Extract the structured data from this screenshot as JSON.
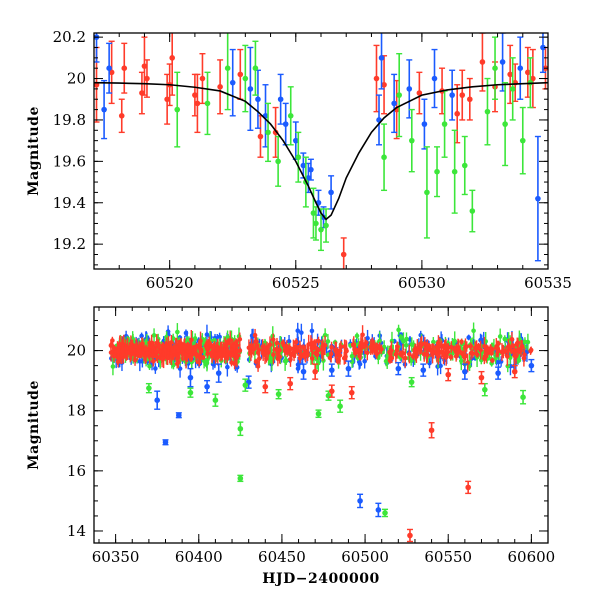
{
  "chart_data": [
    {
      "type": "scatter",
      "title": "",
      "xlabel": "",
      "ylabel": "Magnitude",
      "xlim": [
        60517,
        60535
      ],
      "ylim": [
        20.22,
        19.08
      ],
      "y_inverted": true,
      "x_ticks_labeled": [
        "60520",
        "60525",
        "60530",
        "60535"
      ],
      "y_ticks_labeled": [
        "19.2",
        "19.4",
        "19.6",
        "19.8",
        "20",
        "20.2"
      ],
      "grid": false,
      "legend": "none",
      "series": [
        {
          "color": "#ff3b2a",
          "errorbars": true,
          "points": [
            [
              60517.1,
              19.97,
              0.18
            ],
            [
              60517.7,
              20.03,
              0.15
            ],
            [
              60518.1,
              19.82,
              0.08
            ],
            [
              60518.2,
              20.05,
              0.12
            ],
            [
              60518.9,
              19.93,
              0.1
            ],
            [
              60519.0,
              20.06,
              0.14
            ],
            [
              60519.1,
              20.0,
              0.09
            ],
            [
              60519.9,
              19.9,
              0.12
            ],
            [
              60520.0,
              19.97,
              0.1
            ],
            [
              60520.1,
              20.1,
              0.18
            ],
            [
              60521.0,
              19.92,
              0.1
            ],
            [
              60521.1,
              19.88,
              0.14
            ],
            [
              60521.3,
              20.0,
              0.12
            ],
            [
              60522.0,
              19.96,
              0.13
            ],
            [
              60522.8,
              20.02,
              0.12
            ],
            [
              60523.6,
              19.72,
              0.1
            ],
            [
              60524.2,
              19.74,
              0.12
            ],
            [
              60526.9,
              19.15,
              0.08
            ],
            [
              60528.2,
              20.0,
              0.16
            ],
            [
              60528.5,
              19.97,
              0.14
            ],
            [
              60529.0,
              19.85,
              0.14
            ],
            [
              60529.9,
              19.93,
              0.1
            ],
            [
              60530.8,
              19.94,
              0.11
            ],
            [
              60531.4,
              19.83,
              0.14
            ],
            [
              60531.6,
              19.92,
              0.12
            ],
            [
              60531.9,
              19.9,
              0.1
            ],
            [
              60532.4,
              20.08,
              0.14
            ],
            [
              60532.9,
              19.96,
              0.12
            ],
            [
              60533.5,
              20.02,
              0.14
            ],
            [
              60533.7,
              19.98,
              0.09
            ],
            [
              60534.2,
              20.03,
              0.12
            ],
            [
              60534.4,
              20.0,
              0.14
            ],
            [
              60534.9,
              20.05,
              0.1
            ]
          ]
        },
        {
          "color": "#1b5bff",
          "errorbars": true,
          "points": [
            [
              60517.1,
              20.2,
              0.12
            ],
            [
              60517.4,
              19.85,
              0.14
            ],
            [
              60517.6,
              20.05,
              0.12
            ],
            [
              60522.5,
              19.98,
              0.16
            ],
            [
              60523.2,
              19.95,
              0.2
            ],
            [
              60523.5,
              19.9,
              0.14
            ],
            [
              60523.8,
              19.82,
              0.15
            ],
            [
              60524.4,
              19.9,
              0.12
            ],
            [
              60524.6,
              19.78,
              0.1
            ],
            [
              60525.0,
              19.7,
              0.09
            ],
            [
              60525.3,
              19.58,
              0.06
            ],
            [
              60525.5,
              19.52,
              0.07
            ],
            [
              60525.6,
              19.56,
              0.05
            ],
            [
              60525.9,
              19.4,
              0.06
            ],
            [
              60526.1,
              19.33,
              0.05
            ],
            [
              60526.4,
              19.45,
              0.08
            ],
            [
              60528.3,
              19.8,
              0.12
            ],
            [
              60528.4,
              20.1,
              0.15
            ],
            [
              60528.9,
              19.88,
              0.14
            ],
            [
              60529.5,
              19.95,
              0.14
            ],
            [
              60530.1,
              19.78,
              0.12
            ],
            [
              60530.5,
              20.0,
              0.14
            ],
            [
              60531.2,
              19.92,
              0.12
            ],
            [
              60533.2,
              20.08,
              0.14
            ],
            [
              60533.9,
              20.05,
              0.15
            ],
            [
              60534.6,
              19.42,
              0.3
            ],
            [
              60534.8,
              20.15,
              0.12
            ]
          ]
        },
        {
          "color": "#3ce63a",
          "errorbars": true,
          "points": [
            [
              60520.3,
              19.85,
              0.18
            ],
            [
              60521.5,
              19.88,
              0.15
            ],
            [
              60522.3,
              20.05,
              0.2
            ],
            [
              60523.0,
              20.0,
              0.16
            ],
            [
              60523.4,
              20.05,
              0.13
            ],
            [
              60523.9,
              19.74,
              0.14
            ],
            [
              60524.3,
              19.6,
              0.12
            ],
            [
              60524.8,
              19.82,
              0.14
            ],
            [
              60525.1,
              19.62,
              0.12
            ],
            [
              60525.4,
              19.5,
              0.12
            ],
            [
              60525.7,
              19.35,
              0.12
            ],
            [
              60525.8,
              19.3,
              0.08
            ],
            [
              60526.0,
              19.27,
              0.1
            ],
            [
              60526.2,
              19.29,
              0.08
            ],
            [
              60528.5,
              19.62,
              0.16
            ],
            [
              60529.1,
              19.92,
              0.2
            ],
            [
              60529.6,
              19.7,
              0.15
            ],
            [
              60530.2,
              19.45,
              0.22
            ],
            [
              60530.6,
              19.55,
              0.12
            ],
            [
              60530.9,
              19.78,
              0.16
            ],
            [
              60531.3,
              19.55,
              0.2
            ],
            [
              60531.7,
              19.58,
              0.14
            ],
            [
              60532.0,
              19.36,
              0.1
            ],
            [
              60532.6,
              19.84,
              0.16
            ],
            [
              60532.9,
              20.05,
              0.15
            ],
            [
              60533.3,
              19.78,
              0.2
            ],
            [
              60533.6,
              19.95,
              0.15
            ],
            [
              60534.0,
              19.7,
              0.16
            ],
            [
              60534.3,
              19.98,
              0.12
            ]
          ]
        },
        {
          "type": "line",
          "color": "#000000",
          "errorbars": false,
          "points": [
            [
              60517.0,
              19.98
            ],
            [
              60518.0,
              19.978
            ],
            [
              60519.0,
              19.975
            ],
            [
              60520.0,
              19.97
            ],
            [
              60521.0,
              19.958
            ],
            [
              60522.0,
              19.94
            ],
            [
              60523.0,
              19.89
            ],
            [
              60523.5,
              19.84
            ],
            [
              60524.0,
              19.78
            ],
            [
              60524.5,
              19.7
            ],
            [
              60525.0,
              19.6
            ],
            [
              60525.5,
              19.48
            ],
            [
              60525.8,
              19.4
            ],
            [
              60526.0,
              19.35
            ],
            [
              60526.2,
              19.32
            ],
            [
              60526.4,
              19.34
            ],
            [
              60526.7,
              19.42
            ],
            [
              60527.0,
              19.52
            ],
            [
              60527.5,
              19.64
            ],
            [
              60528.0,
              19.74
            ],
            [
              60528.5,
              19.81
            ],
            [
              60529.0,
              19.86
            ],
            [
              60530.0,
              19.92
            ],
            [
              60531.0,
              19.945
            ],
            [
              60532.0,
              19.96
            ],
            [
              60533.0,
              19.97
            ],
            [
              60534.0,
              19.975
            ],
            [
              60535.0,
              19.98
            ]
          ]
        }
      ]
    },
    {
      "type": "scatter",
      "title": "",
      "xlabel": "HJD−2400000",
      "ylabel": "Magnitude",
      "xlim": [
        60337,
        60610
      ],
      "ylim": [
        21.45,
        13.6
      ],
      "y_inverted": true,
      "x_ticks_labeled": [
        "60350",
        "60400",
        "60450",
        "60500",
        "60550",
        "60600"
      ],
      "y_ticks_labeled": [
        "14",
        "16",
        "18",
        "20"
      ],
      "grid": false,
      "legend": "none",
      "series": [
        {
          "color": "#1b5bff",
          "errorbars": true,
          "points": [
            [
              60375,
              18.35,
              0.3
            ],
            [
              60380,
              16.95,
              0.08
            ],
            [
              60388,
              17.85,
              0.08
            ],
            [
              60395,
              19.1,
              0.3
            ],
            [
              60405,
              18.8,
              0.2
            ],
            [
              60412,
              19.25,
              0.3
            ],
            [
              60430,
              18.95,
              0.2
            ],
            [
              60463,
              19.3,
              0.25
            ],
            [
              60480,
              19.35,
              0.2
            ],
            [
              60490,
              19.4,
              0.25
            ],
            [
              60497,
              15.0,
              0.22
            ],
            [
              60508,
              14.7,
              0.22
            ],
            [
              60520,
              19.4,
              0.2
            ],
            [
              60535,
              19.35,
              0.2
            ],
            [
              60560,
              19.3,
              0.25
            ],
            [
              60580,
              19.25,
              0.2
            ],
            [
              60600,
              19.5,
              0.2
            ]
          ]
        },
        {
          "color": "#3ce63a",
          "errorbars": true,
          "points": [
            [
              60370,
              18.75,
              0.15
            ],
            [
              60395,
              18.6,
              0.15
            ],
            [
              60410,
              18.35,
              0.2
            ],
            [
              60425,
              15.75,
              0.1
            ],
            [
              60425,
              17.4,
              0.22
            ],
            [
              60428,
              18.85,
              0.2
            ],
            [
              60448,
              18.55,
              0.15
            ],
            [
              60472,
              17.9,
              0.12
            ],
            [
              60478,
              18.5,
              0.15
            ],
            [
              60485,
              18.15,
              0.2
            ],
            [
              60512,
              14.6,
              0.12
            ],
            [
              60528,
              18.95,
              0.15
            ],
            [
              60572,
              18.7,
              0.2
            ],
            [
              60595,
              18.45,
              0.22
            ]
          ]
        },
        {
          "color": "#ff3b2a",
          "errorbars": true,
          "points": [
            [
              60440,
              18.8,
              0.2
            ],
            [
              60455,
              18.9,
              0.2
            ],
            [
              60470,
              19.3,
              0.25
            ],
            [
              60480,
              18.65,
              0.2
            ],
            [
              60492,
              18.6,
              0.2
            ],
            [
              60527,
              13.85,
              0.2
            ],
            [
              60540,
              17.35,
              0.25
            ],
            [
              60550,
              19.2,
              0.2
            ],
            [
              60562,
              15.45,
              0.2
            ],
            [
              60570,
              19.1,
              0.2
            ],
            [
              60590,
              19.3,
              0.2
            ]
          ]
        }
      ]
    }
  ],
  "figure": {
    "top_panel": {
      "ylabel": "Magnitude",
      "xticks": [
        {
          "value": 60520,
          "label": "60520"
        },
        {
          "value": 60525,
          "label": "60525"
        },
        {
          "value": 60530,
          "label": "60530"
        },
        {
          "value": 60535,
          "label": "60535"
        }
      ],
      "yticks": [
        {
          "value": 19.2,
          "label": "19.2"
        },
        {
          "value": 19.4,
          "label": "19.4"
        },
        {
          "value": 19.6,
          "label": "19.6"
        },
        {
          "value": 19.8,
          "label": "19.8"
        },
        {
          "value": 20.0,
          "label": "20"
        },
        {
          "value": 20.2,
          "label": "20.2"
        }
      ],
      "x_minor_step": 1,
      "y_minor_step": 0.05
    },
    "bottom_panel": {
      "ylabel": "Magnitude",
      "xlabel": "HJD−2400000",
      "xticks": [
        {
          "value": 60350,
          "label": "60350"
        },
        {
          "value": 60400,
          "label": "60400"
        },
        {
          "value": 60450,
          "label": "60450"
        },
        {
          "value": 60500,
          "label": "60500"
        },
        {
          "value": 60550,
          "label": "60550"
        },
        {
          "value": 60600,
          "label": "60600"
        }
      ],
      "yticks": [
        {
          "value": 14,
          "label": "14"
        },
        {
          "value": 16,
          "label": "16"
        },
        {
          "value": 18,
          "label": "18"
        },
        {
          "value": 20,
          "label": "20"
        }
      ],
      "x_minor_step": 10,
      "y_minor_step": 0.5,
      "dense_baseline": {
        "magnitude": 20.0,
        "scatter": 0.45,
        "ranges": [
          [
            60347,
            60425
          ],
          [
            60430,
            60600
          ]
        ]
      }
    },
    "colors": {
      "red": "#ff3b2a",
      "blue": "#1b5bff",
      "green": "#3ce63a",
      "model": "#000000"
    }
  }
}
